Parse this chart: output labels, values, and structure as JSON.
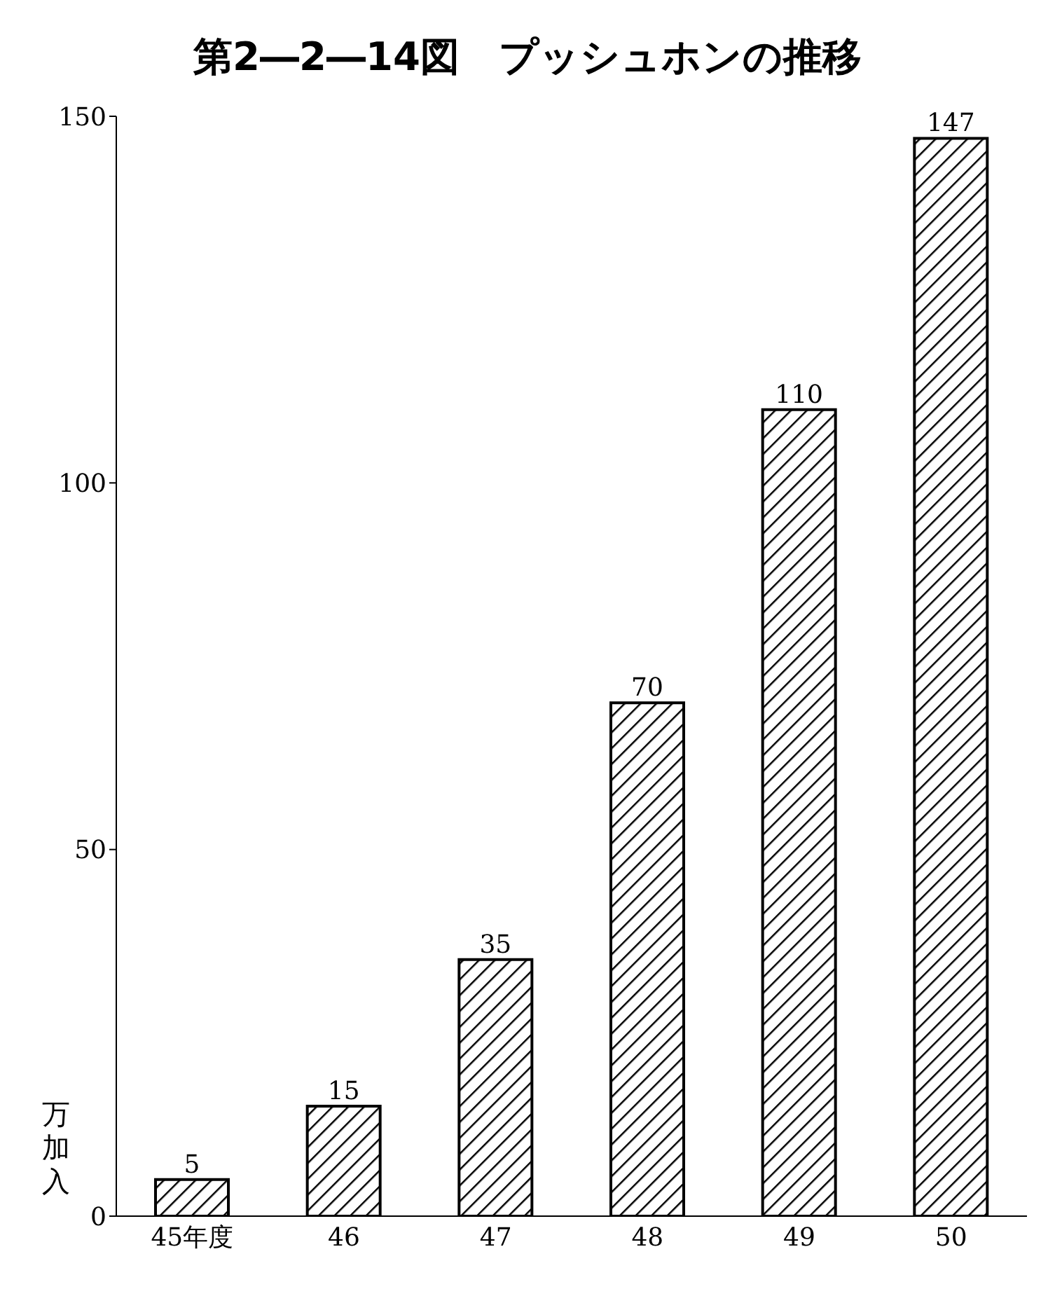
{
  "chart_data": {
    "type": "bar",
    "title": "第2―2―14図　プッシュホンの推移",
    "ylabel": "万加入",
    "categories": [
      "45年度",
      "46",
      "47",
      "48",
      "49",
      "50"
    ],
    "values": [
      5,
      15,
      35,
      70,
      110,
      147
    ],
    "color": "#000000",
    "ylim": [
      0,
      150
    ],
    "yticks": [
      0,
      50,
      100,
      150
    ],
    "grid": false,
    "data_labels": true
  }
}
